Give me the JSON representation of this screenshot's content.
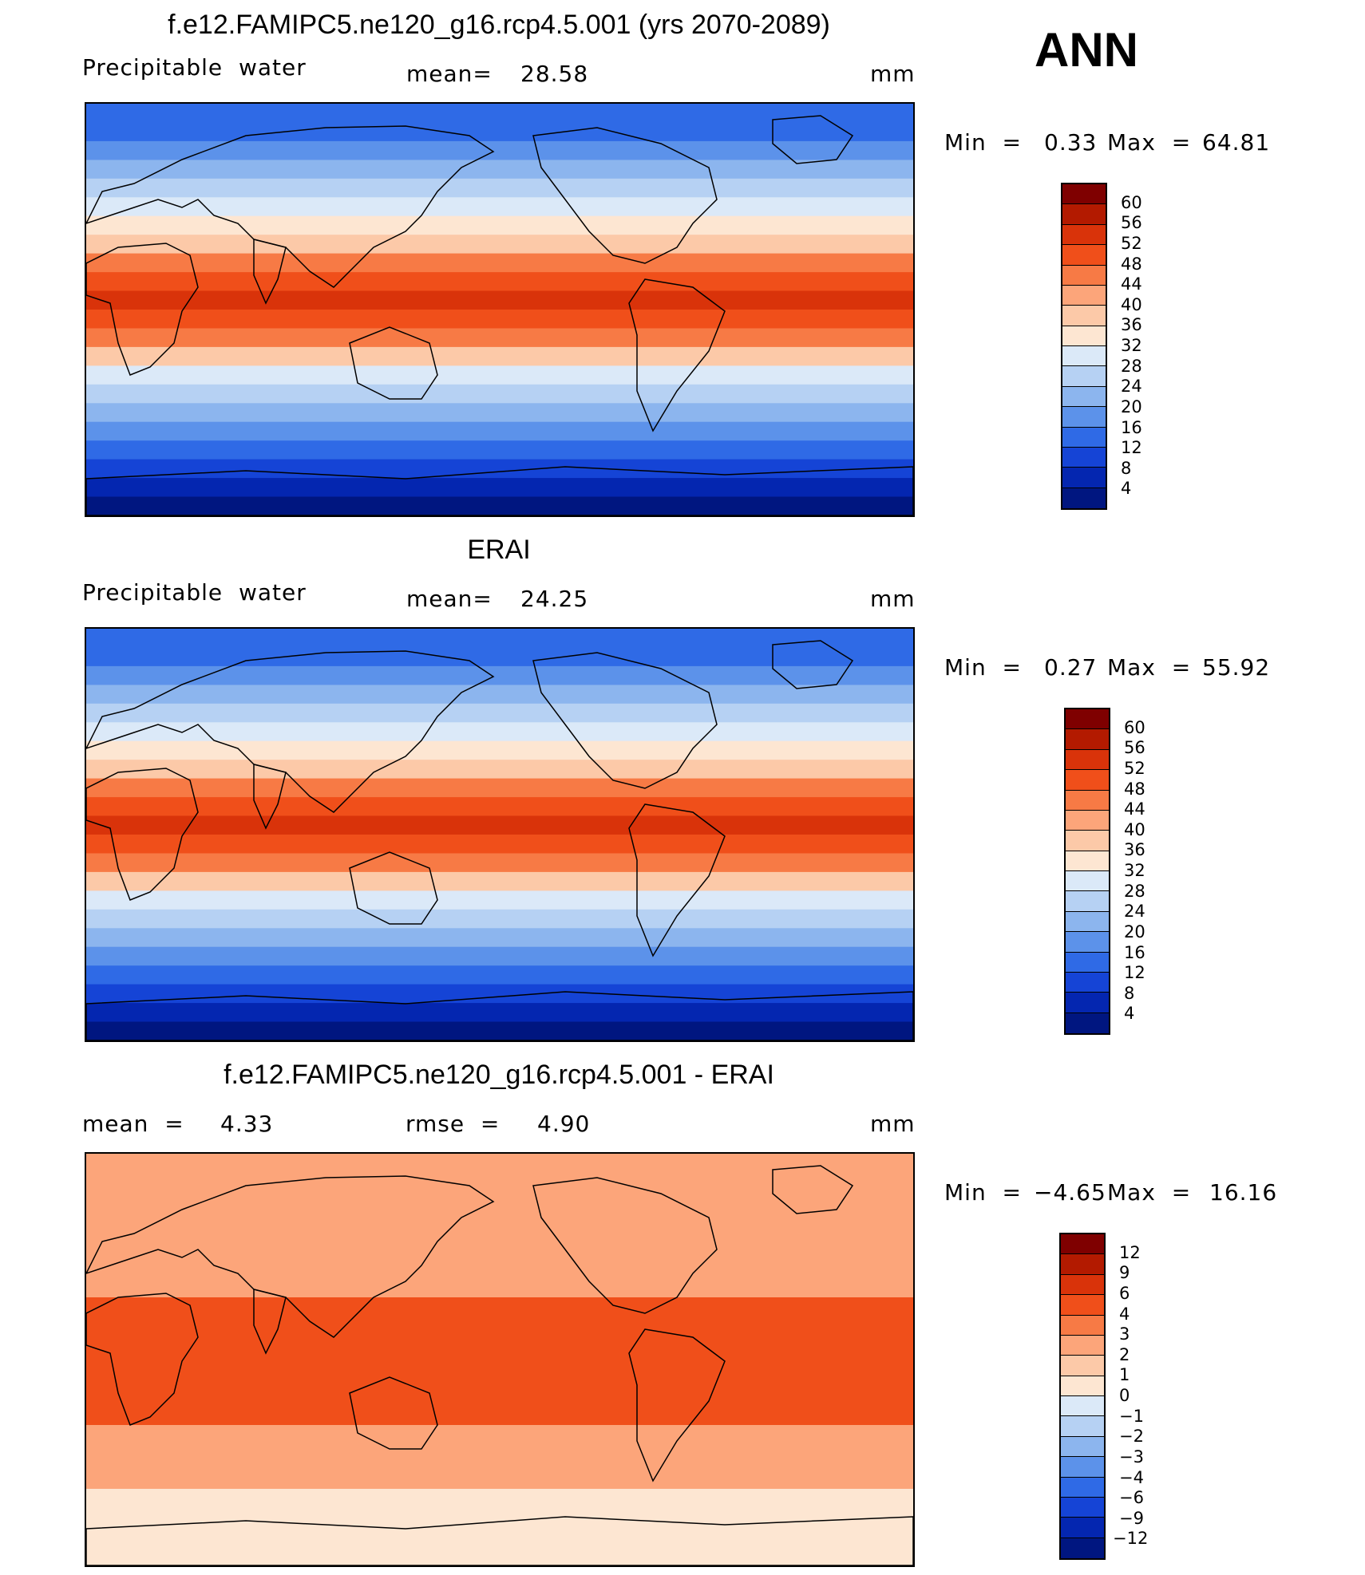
{
  "corner_label": "ANN",
  "panels": [
    {
      "title": "f.e12.FAMIPC5.ne120_g16.rcp4.5.001 (yrs 2070-2089)",
      "left_label": "Precipitable  water",
      "center_label": "mean=",
      "center_value": "28.58",
      "right_label": "mm",
      "minmax": {
        "min_label": "Min  =",
        "min_value": "0.33",
        "max_label": "Max  =",
        "max_value": "64.81"
      },
      "colorbar": {
        "ticks": [
          "60",
          "56",
          "52",
          "48",
          "44",
          "40",
          "36",
          "32",
          "28",
          "24",
          "20",
          "16",
          "12",
          "8",
          "4"
        ],
        "colors": [
          "#7f0000",
          "#b31a00",
          "#d9330a",
          "#f04f1a",
          "#f77a45",
          "#fca57a",
          "#fcc9a8",
          "#fde6d2",
          "#dbe9f8",
          "#b6d1f3",
          "#8cb5ee",
          "#5c92ea",
          "#2f6ae6",
          "#1544d6",
          "#0426b0",
          "#001680"
        ]
      },
      "map_style": "sequential"
    },
    {
      "title": "ERAI",
      "left_label": "Precipitable  water",
      "center_label": "mean=",
      "center_value": "24.25",
      "right_label": "mm",
      "minmax": {
        "min_label": "Min  =",
        "min_value": "0.27",
        "max_label": "Max  =",
        "max_value": "55.92"
      },
      "colorbar": {
        "ticks": [
          "60",
          "56",
          "52",
          "48",
          "44",
          "40",
          "36",
          "32",
          "28",
          "24",
          "20",
          "16",
          "12",
          "8",
          "4"
        ],
        "colors": [
          "#7f0000",
          "#b31a00",
          "#d9330a",
          "#f04f1a",
          "#f77a45",
          "#fca57a",
          "#fcc9a8",
          "#fde6d2",
          "#dbe9f8",
          "#b6d1f3",
          "#8cb5ee",
          "#5c92ea",
          "#2f6ae6",
          "#1544d6",
          "#0426b0",
          "#001680"
        ]
      },
      "map_style": "sequential"
    },
    {
      "title": "f.e12.FAMIPC5.ne120_g16.rcp4.5.001 - ERAI",
      "left_label": "mean  =",
      "left_value": "4.33",
      "center_label": "rmse  =",
      "center_value": "4.90",
      "right_label": "mm",
      "minmax": {
        "min_label": "Min  =",
        "min_value": "−4.65",
        "max_label": "Max  =",
        "max_value": "16.16"
      },
      "colorbar": {
        "ticks": [
          "12",
          "9",
          "6",
          "4",
          "3",
          "2",
          "1",
          "0",
          "−1",
          "−2",
          "−3",
          "−4",
          "−6",
          "−9",
          "−12"
        ],
        "colors": [
          "#7f0000",
          "#b31a00",
          "#d9330a",
          "#f04f1a",
          "#f77a45",
          "#fca57a",
          "#fcc9a8",
          "#fde6d2",
          "#dbe9f8",
          "#b6d1f3",
          "#8cb5ee",
          "#5c92ea",
          "#2f6ae6",
          "#1544d6",
          "#0426b0",
          "#001680"
        ]
      },
      "map_style": "difference"
    }
  ]
}
